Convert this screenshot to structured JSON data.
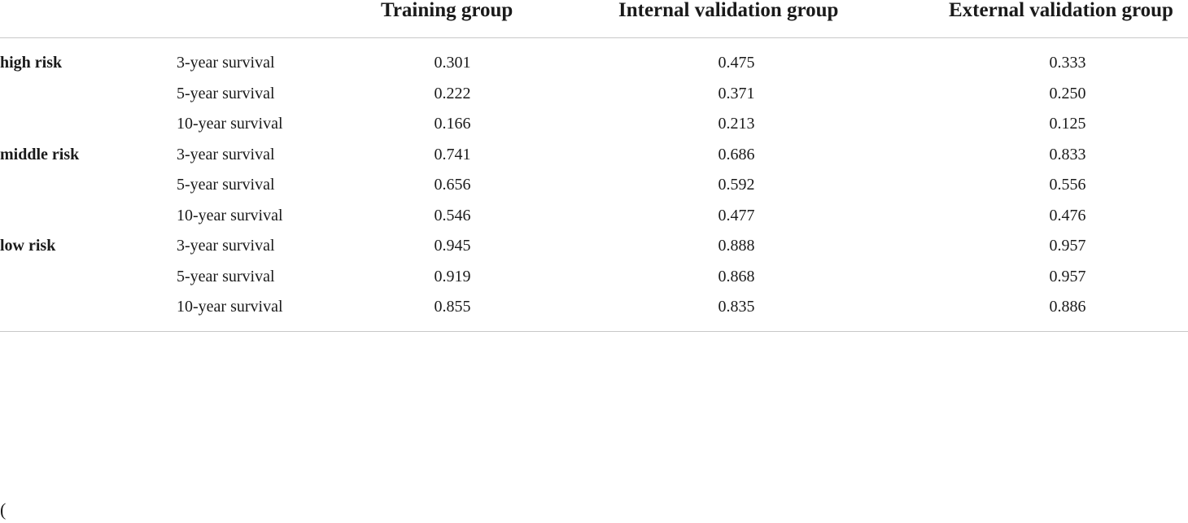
{
  "table": {
    "columns": [
      "Training group",
      "Internal validation group",
      "External validation group"
    ],
    "rows": [
      {
        "risk": "high risk",
        "label": "3-year survival",
        "values": [
          "0.301",
          "0.475",
          "0.333"
        ]
      },
      {
        "risk": "",
        "label": "5-year survival",
        "values": [
          "0.222",
          "0.371",
          "0.250"
        ]
      },
      {
        "risk": "",
        "label": "10-year survival",
        "values": [
          "0.166",
          "0.213",
          "0.125"
        ]
      },
      {
        "risk": "middle risk",
        "label": "3-year survival",
        "values": [
          "0.741",
          "0.686",
          "0.833"
        ]
      },
      {
        "risk": "",
        "label": "5-year survival",
        "values": [
          "0.656",
          "0.592",
          "0.556"
        ]
      },
      {
        "risk": "",
        "label": "10-year survival",
        "values": [
          "0.546",
          "0.477",
          "0.476"
        ]
      },
      {
        "risk": "low risk",
        "label": "3-year survival",
        "values": [
          "0.945",
          "0.888",
          "0.957"
        ]
      },
      {
        "risk": "",
        "label": "5-year survival",
        "values": [
          "0.919",
          "0.868",
          "0.957"
        ]
      },
      {
        "risk": "",
        "label": "10-year survival",
        "values": [
          "0.855",
          "0.835",
          "0.886"
        ]
      }
    ]
  },
  "footnote": "("
}
